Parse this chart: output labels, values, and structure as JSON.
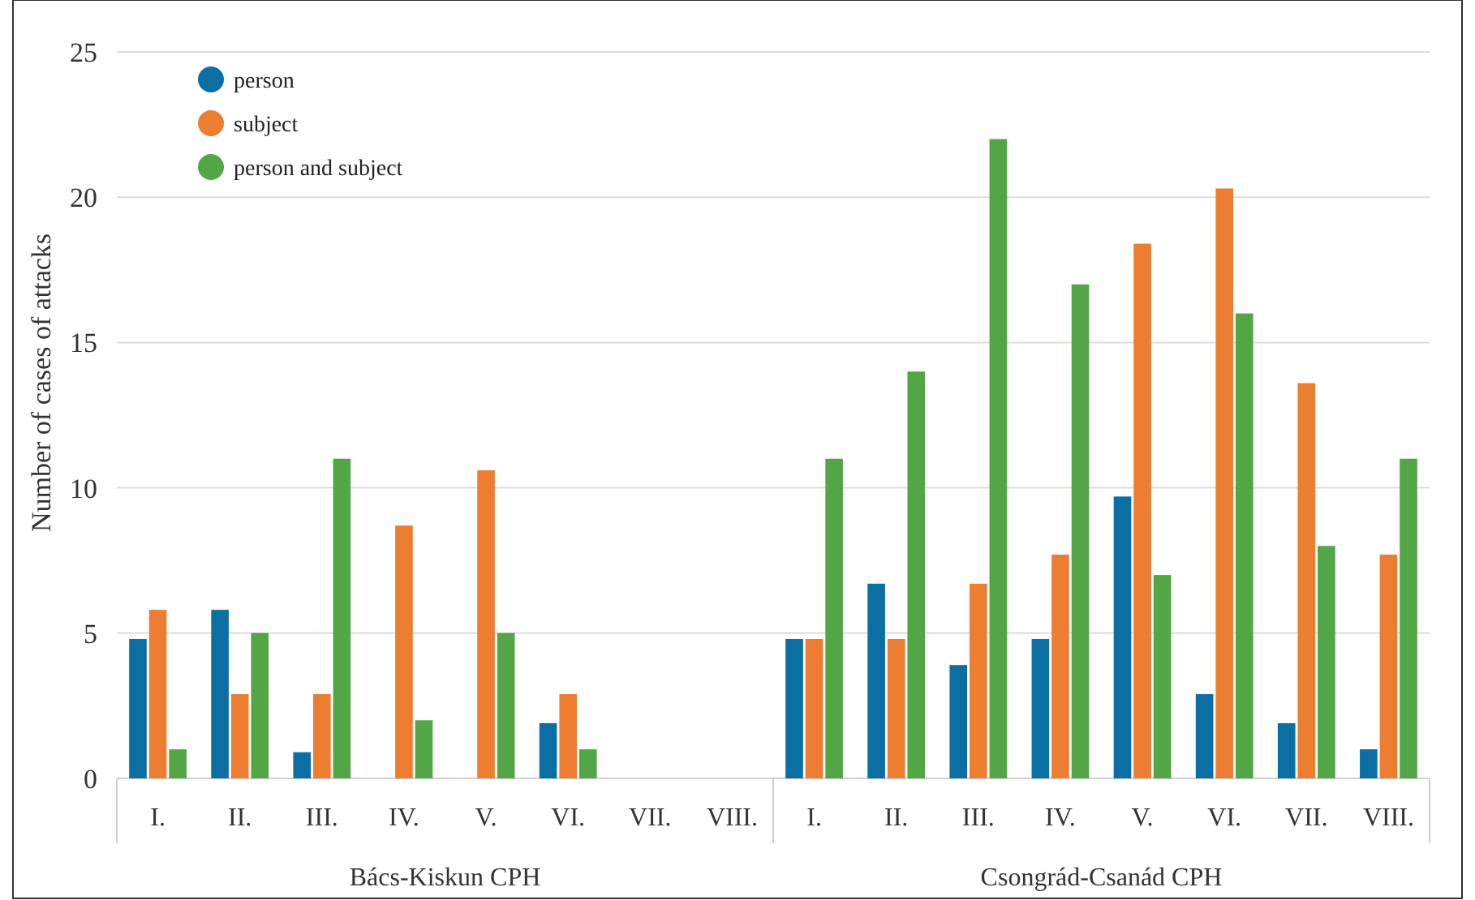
{
  "chart_data": {
    "type": "bar",
    "ylabel": "Number of cases of attacks",
    "categories": [
      "I.",
      "II.",
      "III.",
      "IV.",
      "V.",
      "VI.",
      "VII.",
      "VIII.",
      "I.",
      "II.",
      "III.",
      "IV.",
      "V.",
      "VI.",
      "VII.",
      "VIII."
    ],
    "series": [
      {
        "name": "person",
        "color": "#0b6fa4",
        "values": [
          4.8,
          5.8,
          0.9,
          0,
          0,
          1.9,
          0,
          0,
          4.8,
          6.7,
          3.9,
          4.8,
          9.7,
          2.9,
          1.9,
          1
        ]
      },
      {
        "name": "subject",
        "color": "#ed7d31",
        "values": [
          5.8,
          2.9,
          2.9,
          8.7,
          10.6,
          2.9,
          0,
          0,
          4.8,
          4.8,
          6.7,
          7.7,
          18.4,
          20.3,
          13.6,
          7.7
        ]
      },
      {
        "name": "person and subject",
        "color": "#52a646",
        "values": [
          1,
          5,
          11,
          2,
          5,
          1,
          0,
          0,
          11,
          14,
          22,
          17,
          7,
          16,
          8,
          11
        ]
      }
    ],
    "annotations": [
      "Bács-Kiskun CPH",
      "Csongrád-Csanád CPH"
    ],
    "ylim": [
      0,
      25
    ],
    "yticks": [
      0,
      5,
      10,
      15,
      20,
      25
    ],
    "grid": "y",
    "legend": "top left"
  }
}
